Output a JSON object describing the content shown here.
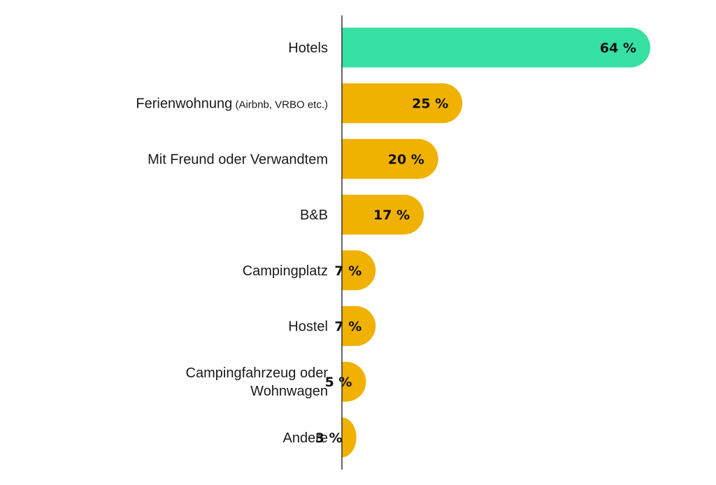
{
  "chart_data": {
    "type": "bar",
    "orientation": "horizontal",
    "categories": [
      "Hotels",
      "Ferienwohnung (Airbnb, VRBO etc.)",
      "Mit Freund oder Verwandtem",
      "B&B",
      "Campingplatz",
      "Hostel",
      "Campingfahrzeug oder Wohnwagen",
      "Andere"
    ],
    "category_label_lines": [
      [
        {
          "text": "Hotels"
        }
      ],
      [
        {
          "text": "Ferienwohnung",
          "small": " (Airbnb, VRBO etc.)"
        }
      ],
      [
        {
          "text": "Mit Freund oder Verwandtem"
        }
      ],
      [
        {
          "text": "B&B"
        }
      ],
      [
        {
          "text": "Campingplatz"
        }
      ],
      [
        {
          "text": "Hostel"
        }
      ],
      [
        {
          "text": "Campingfahrzeug oder"
        },
        {
          "text": "Wohnwagen"
        }
      ],
      [
        {
          "text": "Andere"
        }
      ]
    ],
    "values": [
      64,
      25,
      20,
      17,
      7,
      7,
      5,
      3
    ],
    "value_labels": [
      "64 %",
      "25 %",
      "20 %",
      "17 %",
      "7 %",
      "7 %",
      "5 %",
      "3 %"
    ],
    "highlight_index": 0,
    "colors": {
      "highlight": "#36e0a2",
      "default": "#f0b100",
      "axis": "#333333"
    },
    "xlim": [
      0,
      64
    ],
    "grid": false,
    "legend": "none"
  }
}
